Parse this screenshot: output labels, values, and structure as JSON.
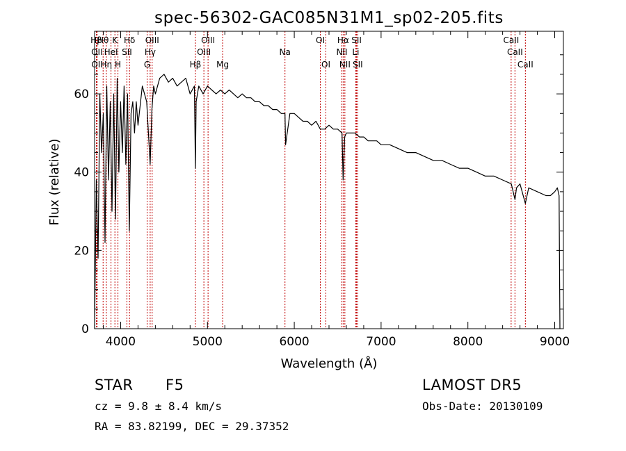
{
  "chart_data": {
    "type": "line",
    "title": "spec-56302-GAC085N31M1_sp02-205.fits",
    "xlabel": "Wavelength (Å)",
    "ylabel": "Flux (relative)",
    "xlim": [
      3700,
      9100
    ],
    "ylim": [
      0,
      76
    ],
    "xticks": [
      4000,
      5000,
      6000,
      7000,
      8000,
      9000
    ],
    "yticks": [
      0,
      20,
      40,
      60
    ],
    "x_tick_labels": [
      "4000",
      "5000",
      "6000",
      "7000",
      "8000",
      "9000"
    ],
    "y_tick_labels": [
      "0",
      "20",
      "40",
      "60"
    ],
    "grid": false,
    "series": [
      {
        "x": [
          3700,
          3720,
          3740,
          3760,
          3780,
          3800,
          3820,
          3840,
          3860,
          3880,
          3900,
          3920,
          3940,
          3960,
          3980,
          4000,
          4020,
          4040,
          4060,
          4080,
          4100,
          4120,
          4140,
          4160,
          4180,
          4200,
          4250,
          4300,
          4340,
          4360,
          4380,
          4400,
          4450,
          4500,
          4550,
          4600,
          4650,
          4700,
          4750,
          4800,
          4850,
          4861,
          4870,
          4900,
          4950,
          5000,
          5050,
          5100,
          5150,
          5200,
          5250,
          5300,
          5350,
          5400,
          5450,
          5500,
          5550,
          5600,
          5650,
          5700,
          5750,
          5800,
          5850,
          5893,
          5900,
          5950,
          6000,
          6050,
          6100,
          6150,
          6200,
          6250,
          6300,
          6350,
          6400,
          6450,
          6500,
          6550,
          6563,
          6580,
          6600,
          6650,
          6700,
          6750,
          6800,
          6850,
          6900,
          6950,
          7000,
          7100,
          7200,
          7300,
          7400,
          7500,
          7600,
          7700,
          7800,
          7900,
          8000,
          8100,
          8200,
          8300,
          8400,
          8500,
          8542,
          8560,
          8600,
          8662,
          8700,
          8800,
          8900,
          8950,
          9000,
          9030,
          9050,
          9060
        ],
        "y": [
          0,
          38,
          18,
          60,
          45,
          55,
          22,
          62,
          38,
          58,
          30,
          60,
          28,
          64,
          40,
          58,
          45,
          62,
          42,
          60,
          25,
          55,
          58,
          50,
          58,
          52,
          62,
          58,
          42,
          56,
          62,
          60,
          64,
          65,
          63,
          64,
          62,
          63,
          64,
          60,
          62,
          41,
          58,
          62,
          60,
          62,
          61,
          60,
          61,
          60,
          61,
          60,
          59,
          60,
          59,
          59,
          58,
          58,
          57,
          57,
          56,
          56,
          55,
          55,
          47,
          55,
          55,
          54,
          53,
          53,
          52,
          53,
          51,
          51,
          52,
          51,
          51,
          50,
          38,
          49,
          50,
          50,
          50,
          49,
          49,
          48,
          48,
          48,
          47,
          47,
          46,
          45,
          45,
          44,
          43,
          43,
          42,
          41,
          41,
          40,
          39,
          39,
          38,
          37,
          33,
          36,
          37,
          32,
          36,
          35,
          34,
          34,
          35,
          36,
          34,
          0
        ]
      }
    ],
    "line_labels": [
      {
        "name": "Hβ",
        "x": 3720,
        "row": 1
      },
      {
        "name": "OII",
        "x": 3727,
        "row": 2
      },
      {
        "name": "OII",
        "x": 3729,
        "row": 3
      },
      {
        "name": "Hθ",
        "x": 3798,
        "row": 1
      },
      {
        "name": "Hη",
        "x": 3835,
        "row": 3
      },
      {
        "name": "HeI",
        "x": 3889,
        "row": 2
      },
      {
        "name": "K",
        "x": 3934,
        "row": 1
      },
      {
        "name": "H",
        "x": 3969,
        "row": 3
      },
      {
        "name": "SII",
        "x": 4072,
        "row": 2
      },
      {
        "name": "Hδ",
        "x": 4102,
        "row": 1
      },
      {
        "name": "OIII",
        "x": 4363,
        "row": 1
      },
      {
        "name": "Hγ",
        "x": 4340,
        "row": 2
      },
      {
        "name": "G",
        "x": 4305,
        "row": 3
      },
      {
        "name": "Hβ",
        "x": 4861,
        "row": 3
      },
      {
        "name": "OIII",
        "x": 5007,
        "row": 1
      },
      {
        "name": "OIII",
        "x": 4959,
        "row": 2
      },
      {
        "name": "Mg",
        "x": 5175,
        "row": 3
      },
      {
        "name": "Na",
        "x": 5893,
        "row": 2
      },
      {
        "name": "OI",
        "x": 6300,
        "row": 1
      },
      {
        "name": "OI",
        "x": 6364,
        "row": 3
      },
      {
        "name": "Hα",
        "x": 6563,
        "row": 1
      },
      {
        "name": "NII",
        "x": 6548,
        "row": 2
      },
      {
        "name": "NII",
        "x": 6583,
        "row": 3
      },
      {
        "name": "SII",
        "x": 6717,
        "row": 1
      },
      {
        "name": "Li",
        "x": 6708,
        "row": 2
      },
      {
        "name": "SII",
        "x": 6731,
        "row": 3
      },
      {
        "name": "CaII",
        "x": 8498,
        "row": 1
      },
      {
        "name": "CaII",
        "x": 8542,
        "row": 2
      },
      {
        "name": "CaII",
        "x": 8662,
        "row": 3
      }
    ]
  },
  "info": {
    "class": "STAR",
    "subclass": "F5",
    "survey": "LAMOST  DR5",
    "cz": "cz = 9.8 ± 8.4 km/s",
    "obs_date": "Obs-Date: 20130109",
    "radec": "RA =  83.82199, DEC =  29.37352"
  },
  "colors": {
    "spectrum": "#000000",
    "line_markers": "#c00000",
    "axes": "#000000",
    "background": "#ffffff"
  }
}
